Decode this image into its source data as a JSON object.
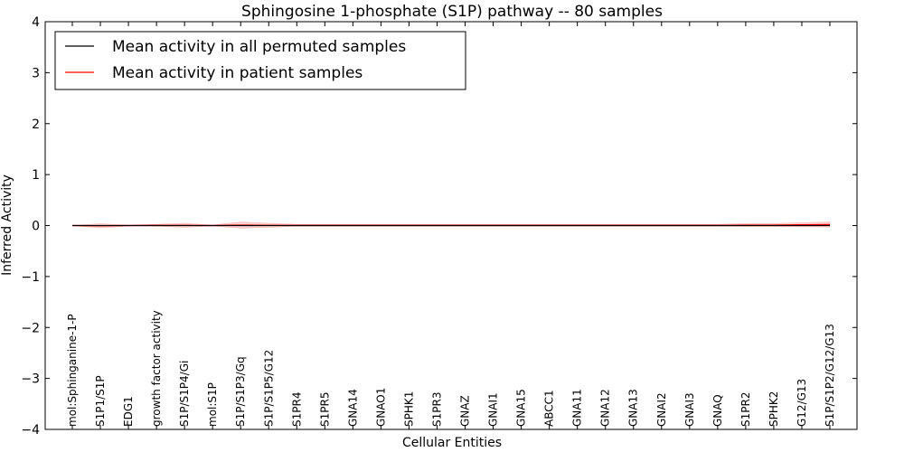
{
  "chart_data": {
    "type": "line",
    "title": "Sphingosine 1-phosphate (S1P) pathway -- 80 samples",
    "xlabel": "Cellular Entities",
    "ylabel": "Inferred Activity",
    "ylim": [
      -4,
      4
    ],
    "yticks": [
      4,
      3,
      2,
      1,
      0,
      -1,
      -2,
      -3,
      -4
    ],
    "ytick_labels": [
      "4",
      "3",
      "2",
      "1",
      "0",
      "−1",
      "−2",
      "−3",
      "−4"
    ],
    "legend_position": "top-left",
    "categories": [
      "mol:Sphinganine-1-P",
      "S1P1/S1P",
      "EDG1",
      "growth factor activity",
      "S1P/S1P4/Gi",
      "mol:S1P",
      "S1P/S1P3/Gq",
      "S1P/S1P5/G12",
      "S1PR4",
      "S1PR5",
      "GNA14",
      "GNAO1",
      "SPHK1",
      "S1PR3",
      "GNAZ",
      "GNAI1",
      "GNA15",
      "ABCC1",
      "GNA11",
      "GNA12",
      "GNA13",
      "GNAI2",
      "GNAI3",
      "GNAQ",
      "S1PR2",
      "SPHK2",
      "G12/G13",
      "S1P/S1P2/G12/G13"
    ],
    "series": [
      {
        "name": "Mean activity in all permuted samples",
        "color": "#000000",
        "values": [
          0,
          0,
          0,
          0,
          0,
          0,
          0,
          0,
          0,
          0,
          0,
          0,
          0,
          0,
          0,
          0,
          0,
          0,
          0,
          0,
          0,
          0,
          0,
          0,
          0,
          0,
          0,
          0
        ]
      },
      {
        "name": "Mean activity in patient samples",
        "color": "#ff0000",
        "values": [
          0,
          -0.005,
          0,
          0.005,
          0.005,
          0,
          0.01,
          0.005,
          0.005,
          0.005,
          0.005,
          0.005,
          0.005,
          0.005,
          0.005,
          0.005,
          0.005,
          0.005,
          0.005,
          0.005,
          0.005,
          0.005,
          0.005,
          0.005,
          0.01,
          0.01,
          0.015,
          0.02
        ],
        "spread": [
          0.005,
          0.04,
          0.01,
          0.02,
          0.04,
          0.01,
          0.06,
          0.04,
          0.02,
          0.02,
          0.02,
          0.02,
          0.02,
          0.02,
          0.02,
          0.02,
          0.02,
          0.02,
          0.02,
          0.02,
          0.02,
          0.02,
          0.02,
          0.02,
          0.03,
          0.03,
          0.04,
          0.05
        ]
      }
    ]
  }
}
